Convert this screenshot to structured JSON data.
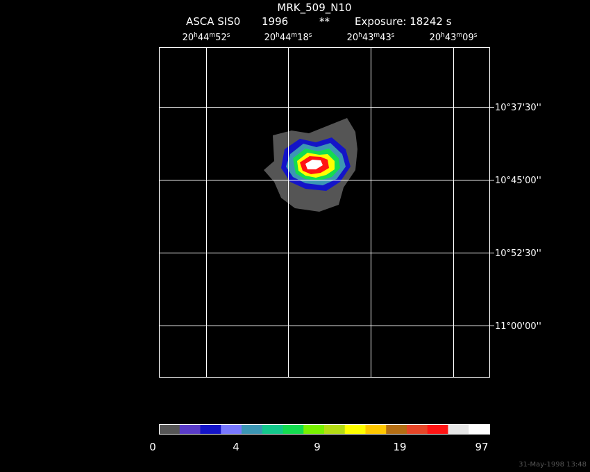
{
  "header": {
    "title": "MRK_509_N10",
    "instrument": "ASCA SIS0",
    "year": "1996",
    "flag": "**",
    "exposure": "Exposure: 18242 s"
  },
  "ra_labels": [
    [
      "20",
      "h",
      "44",
      "m",
      "52",
      "s"
    ],
    [
      "20",
      "h",
      "44",
      "m",
      "18",
      "s"
    ],
    [
      "20",
      "h",
      "43",
      "m",
      "43",
      "s"
    ],
    [
      "20",
      "h",
      "43",
      "m",
      "09",
      "s"
    ]
  ],
  "dec_labels": [
    "10°37'30''",
    "10°45'00''",
    "10°52'30''",
    "11°00'00''"
  ],
  "colorbar": {
    "colors": [
      "#555555",
      "#5a3cc8",
      "#1414c8",
      "#7878ff",
      "#3c96b4",
      "#14c88c",
      "#14dc50",
      "#78f000",
      "#b4dc14",
      "#ffff00",
      "#ffc800",
      "#b46e14",
      "#e64628",
      "#ff1414",
      "#e6e6e6",
      "#ffffff"
    ],
    "labels": [
      "0",
      "4",
      "9",
      "19",
      "97"
    ]
  },
  "timestamp": "31-May-1998 13:48"
}
